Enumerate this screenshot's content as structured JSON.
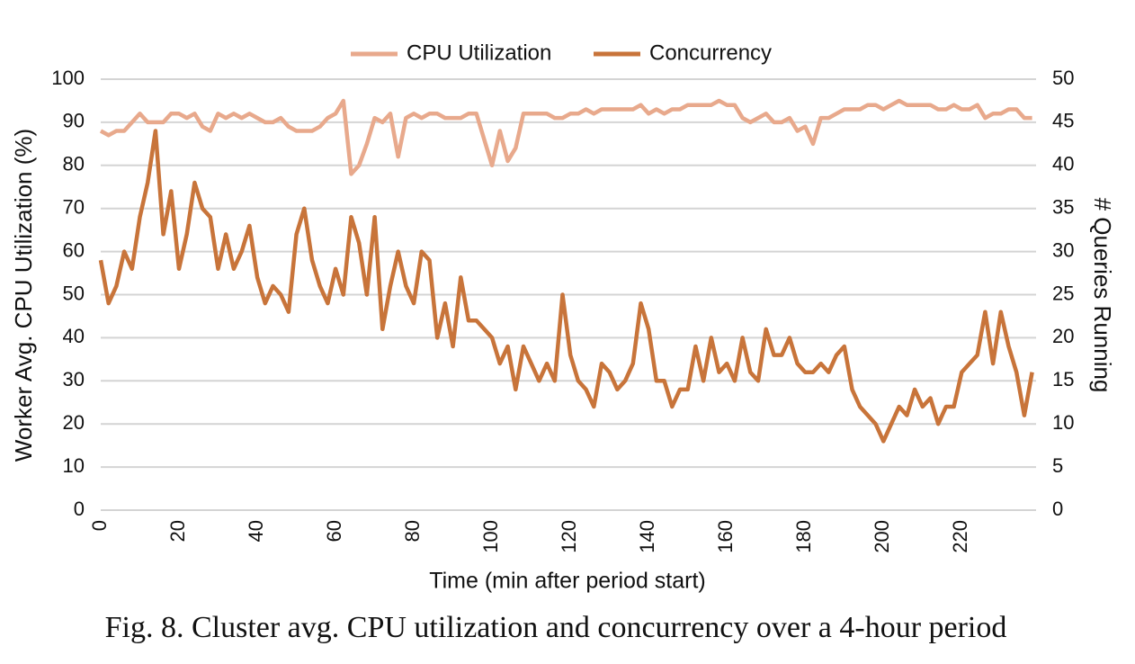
{
  "chart_data": {
    "type": "line",
    "caption": "Fig. 8.  Cluster avg. CPU utilization and concurrency over a 4-hour period",
    "xlabel": "Time (min after period start)",
    "ylabel": "Worker Avg. CPU Utilization (%)",
    "y2label": "# Queries Running",
    "legend": "top",
    "grid": true,
    "xlim": [
      0,
      239
    ],
    "xticks": [
      0,
      20,
      40,
      60,
      80,
      100,
      120,
      140,
      160,
      180,
      200,
      220
    ],
    "ylim": [
      0,
      100
    ],
    "yticks": [
      0,
      10,
      20,
      30,
      40,
      50,
      60,
      70,
      80,
      90,
      100
    ],
    "y2lim": [
      0,
      50
    ],
    "y2ticks": [
      0,
      5,
      10,
      15,
      20,
      25,
      30,
      35,
      40,
      45,
      50
    ],
    "x": [
      0,
      2,
      4,
      6,
      8,
      10,
      12,
      14,
      16,
      18,
      20,
      22,
      24,
      26,
      28,
      30,
      32,
      34,
      36,
      38,
      40,
      42,
      44,
      46,
      48,
      50,
      52,
      54,
      56,
      58,
      60,
      62,
      64,
      66,
      68,
      70,
      72,
      74,
      76,
      78,
      80,
      82,
      84,
      86,
      88,
      90,
      92,
      94,
      96,
      98,
      100,
      102,
      104,
      106,
      108,
      110,
      112,
      114,
      116,
      118,
      120,
      122,
      124,
      126,
      128,
      130,
      132,
      134,
      136,
      138,
      140,
      142,
      144,
      146,
      148,
      150,
      152,
      154,
      156,
      158,
      160,
      162,
      164,
      166,
      168,
      170,
      172,
      174,
      176,
      178,
      180,
      182,
      184,
      186,
      188,
      190,
      192,
      194,
      196,
      198,
      200,
      202,
      204,
      206,
      208,
      210,
      212,
      214,
      216,
      218,
      220,
      222,
      224,
      226,
      228,
      230,
      232,
      234,
      236,
      238
    ],
    "series": [
      {
        "name": "CPU Utilization",
        "color": "#e8a98c",
        "values": [
          88,
          87,
          88,
          88,
          90,
          92,
          90,
          90,
          90,
          92,
          92,
          91,
          92,
          89,
          88,
          92,
          91,
          92,
          91,
          92,
          91,
          90,
          90,
          91,
          89,
          88,
          88,
          88,
          89,
          91,
          92,
          95,
          78,
          80,
          85,
          91,
          90,
          92,
          82,
          91,
          92,
          91,
          92,
          92,
          91,
          91,
          91,
          92,
          92,
          86,
          80,
          88,
          81,
          84,
          92,
          92,
          92,
          92,
          91,
          91,
          92,
          92,
          93,
          92,
          93,
          93,
          93,
          93,
          93,
          94,
          92,
          93,
          92,
          93,
          93,
          94,
          94,
          94,
          94,
          95,
          94,
          94,
          91,
          90,
          91,
          92,
          90,
          90,
          91,
          88,
          89,
          85,
          91,
          91,
          92,
          93,
          93,
          93,
          94,
          94,
          93,
          94,
          95,
          94,
          94,
          94,
          94,
          93,
          93,
          94,
          93,
          93,
          94,
          91,
          92,
          92,
          93,
          93,
          91,
          91
        ]
      },
      {
        "name": "Concurrency",
        "color": "#c8743a",
        "axis": "y2",
        "values": [
          29,
          24,
          26,
          30,
          28,
          34,
          38,
          44,
          32,
          37,
          28,
          32,
          38,
          35,
          34,
          28,
          32,
          28,
          30,
          33,
          27,
          24,
          26,
          25,
          23,
          32,
          35,
          29,
          26,
          24,
          28,
          25,
          34,
          31,
          25,
          34,
          21,
          26,
          30,
          26,
          24,
          30,
          29,
          20,
          24,
          19,
          27,
          22,
          22,
          21,
          20,
          17,
          19,
          14,
          19,
          17,
          15,
          17,
          15,
          25,
          18,
          15,
          14,
          12,
          17,
          16,
          14,
          15,
          17,
          24,
          21,
          15,
          15,
          12,
          14,
          14,
          19,
          15,
          20,
          16,
          17,
          15,
          20,
          16,
          15,
          21,
          18,
          18,
          20,
          17,
          16,
          16,
          17,
          16,
          18,
          19,
          14,
          12,
          11,
          10,
          8,
          10,
          12,
          11,
          14,
          12,
          13,
          10,
          12,
          12,
          16,
          17,
          18,
          23,
          17,
          23,
          19,
          16,
          11,
          16
        ]
      }
    ]
  }
}
